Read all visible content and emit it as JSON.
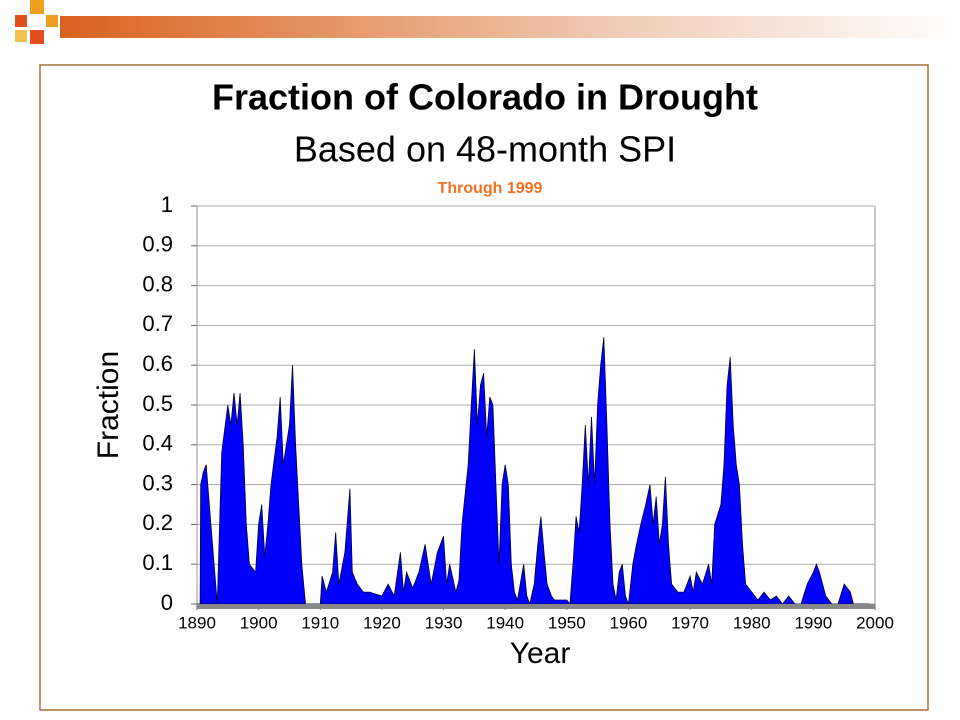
{
  "chart_data": {
    "type": "area",
    "title": "Fraction of Colorado in Drought",
    "subtitle": "Based on 48-month SPI",
    "annotation": "Through 1999",
    "x_label": "Year",
    "y_label": "Fraction",
    "color": "#0000ff",
    "grid": true,
    "xlim": [
      1890,
      2000
    ],
    "xticks": [
      1890,
      1900,
      1910,
      1920,
      1930,
      1940,
      1950,
      1960,
      1970,
      1980,
      1990,
      2000
    ],
    "ylim": [
      0,
      1
    ],
    "yticks": [
      0,
      0.1,
      0.2,
      0.3,
      0.4,
      0.5,
      0.6,
      0.7,
      0.8,
      0.9,
      1
    ],
    "x": [
      1890,
      1890.5,
      1890.6,
      1891,
      1891.5,
      1892,
      1893.3,
      1894,
      1895,
      1895.5,
      1896,
      1896.5,
      1897,
      1897.5,
      1898,
      1898.5,
      1899.5,
      1900,
      1900.5,
      1901,
      1901.5,
      1902,
      1903,
      1903.5,
      1904,
      1905,
      1905.5,
      1906,
      1906.5,
      1907,
      1907.6,
      1910,
      1910.3,
      1911,
      1912,
      1912.5,
      1913,
      1914,
      1914.8,
      1915.2,
      1916,
      1917,
      1918,
      1920,
      1921,
      1922,
      1923,
      1923.5,
      1924,
      1925,
      1926,
      1927,
      1927.5,
      1928,
      1929,
      1930,
      1930.5,
      1931,
      1932,
      1932.5,
      1933,
      1934,
      1934.5,
      1935,
      1935.5,
      1936,
      1936.5,
      1937,
      1937.5,
      1938,
      1938.5,
      1939,
      1939.5,
      1940,
      1940.5,
      1941,
      1941.5,
      1942,
      1943,
      1943.5,
      1944,
      1944.7,
      1945.3,
      1945.8,
      1946.3,
      1946.8,
      1947.5,
      1948,
      1949,
      1950,
      1950.5,
      1951,
      1951.5,
      1952,
      1952.5,
      1953,
      1953.5,
      1954,
      1954.5,
      1955,
      1955.5,
      1956,
      1956.5,
      1957,
      1957.5,
      1958,
      1958.5,
      1959,
      1959.5,
      1960,
      1960.7,
      1961.3,
      1962,
      1962.8,
      1963.5,
      1964,
      1964.5,
      1965,
      1965.5,
      1966,
      1966.5,
      1967,
      1968,
      1969,
      1970,
      1970.5,
      1971,
      1972,
      1973,
      1973.5,
      1974,
      1975,
      1975.5,
      1976,
      1976.5,
      1977,
      1977.5,
      1978,
      1978.5,
      1979,
      1980,
      1981,
      1982,
      1983,
      1984,
      1985,
      1986,
      1987,
      1988,
      1989,
      1990,
      1990.5,
      1991,
      1992,
      1993,
      1994,
      1995,
      1996,
      1996.5,
      1999
    ],
    "values": [
      0,
      0,
      0.3,
      0.33,
      0.35,
      0.25,
      0,
      0.38,
      0.5,
      0.45,
      0.53,
      0.45,
      0.53,
      0.4,
      0.2,
      0.1,
      0.08,
      0.2,
      0.25,
      0.12,
      0.2,
      0.3,
      0.42,
      0.52,
      0.35,
      0.45,
      0.6,
      0.4,
      0.25,
      0.1,
      0,
      0,
      0.07,
      0.03,
      0.08,
      0.18,
      0.05,
      0.13,
      0.29,
      0.08,
      0.05,
      0.03,
      0.03,
      0.02,
      0.05,
      0.02,
      0.13,
      0.03,
      0.08,
      0.04,
      0.08,
      0.15,
      0.1,
      0.05,
      0.13,
      0.17,
      0.05,
      0.1,
      0.03,
      0.06,
      0.2,
      0.35,
      0.5,
      0.64,
      0.45,
      0.55,
      0.58,
      0.42,
      0.52,
      0.5,
      0.3,
      0.1,
      0.3,
      0.35,
      0.3,
      0.1,
      0.03,
      0.01,
      0.1,
      0.02,
      0,
      0.05,
      0.15,
      0.22,
      0.13,
      0.05,
      0.02,
      0.01,
      0.01,
      0.01,
      0,
      0.1,
      0.22,
      0.18,
      0.3,
      0.45,
      0.3,
      0.47,
      0.3,
      0.5,
      0.6,
      0.67,
      0.45,
      0.2,
      0.05,
      0.01,
      0.08,
      0.1,
      0.02,
      0,
      0.1,
      0.15,
      0.2,
      0.25,
      0.3,
      0.2,
      0.27,
      0.15,
      0.2,
      0.32,
      0.15,
      0.05,
      0.03,
      0.03,
      0.07,
      0.03,
      0.08,
      0.05,
      0.1,
      0.05,
      0.2,
      0.25,
      0.35,
      0.55,
      0.62,
      0.45,
      0.35,
      0.3,
      0.15,
      0.05,
      0.03,
      0.01,
      0.03,
      0.01,
      0.02,
      0,
      0.02,
      0,
      0,
      0.05,
      0.08,
      0.1,
      0.08,
      0.02,
      0,
      0,
      0.05,
      0.03,
      0,
      0
    ]
  }
}
